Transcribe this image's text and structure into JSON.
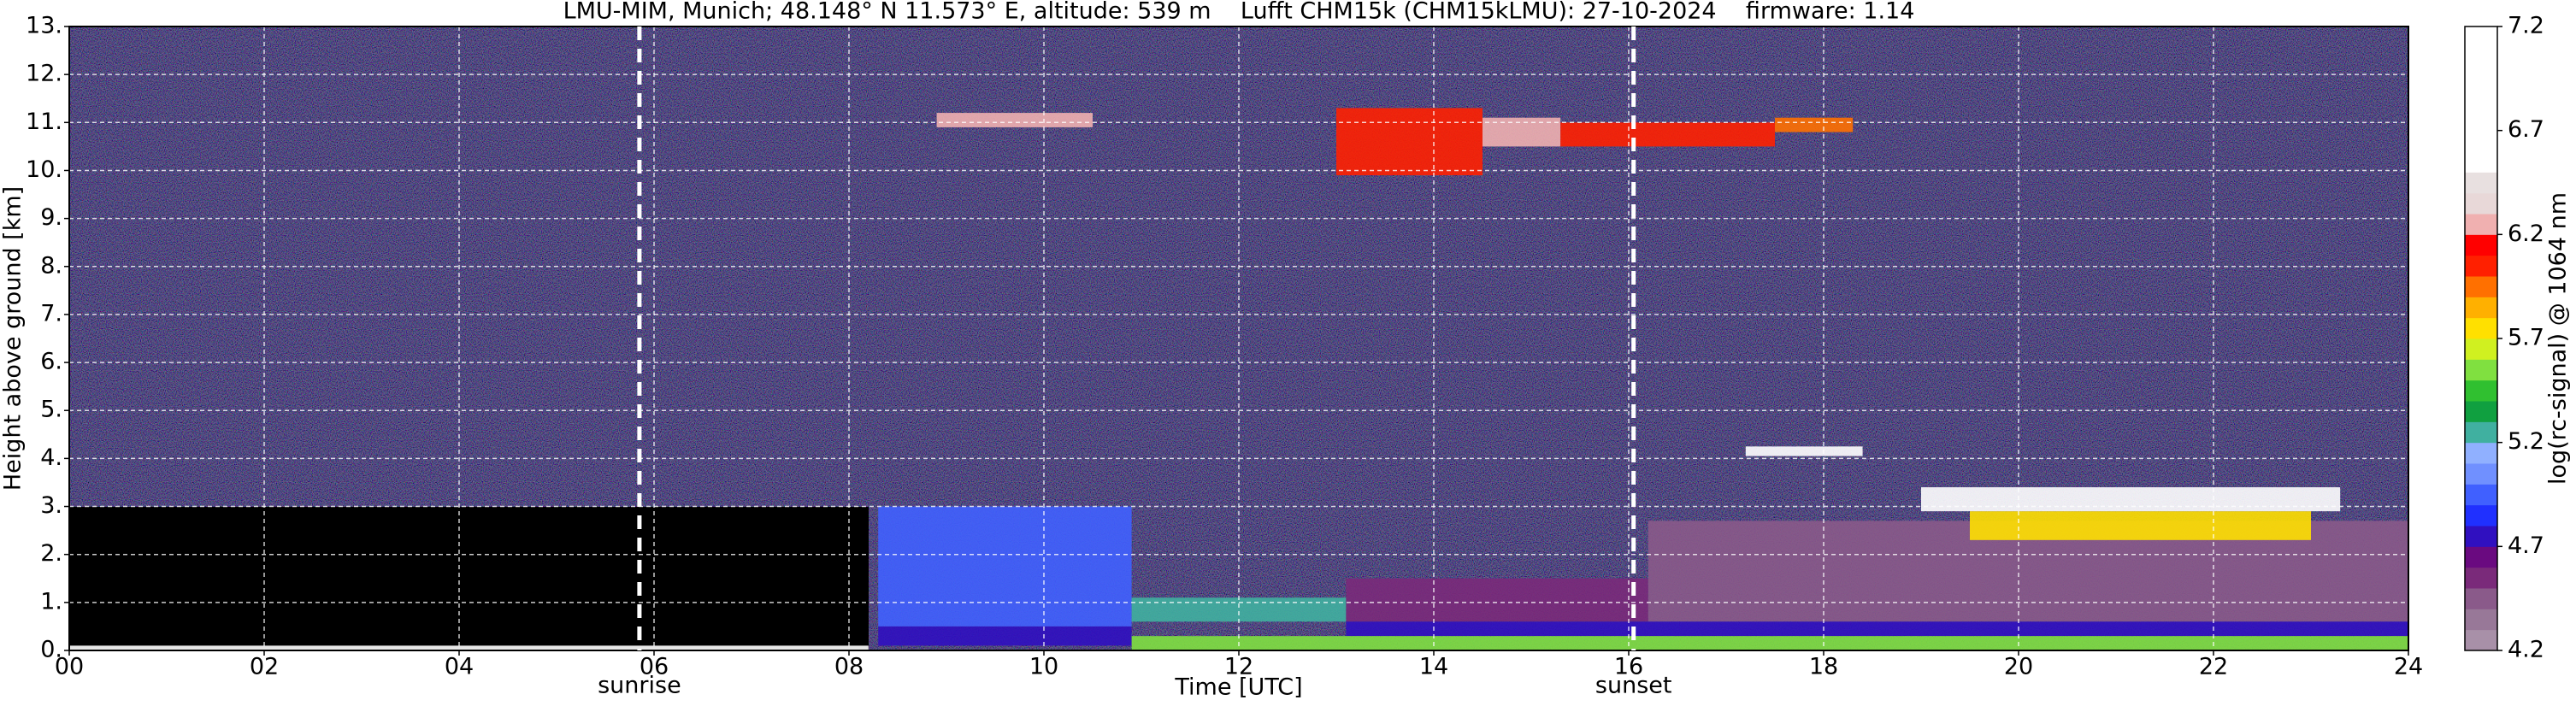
{
  "chart_data": {
    "type": "heatmap",
    "title": "LMU-MIM, Munich; 48.148° N 11.573° E, altitude: 539 m    Lufft CHM15k (CHM15kLMU): 27-10-2024    firmware: 1.14",
    "x_label": "Time [UTC]",
    "y_label": "Height above ground [km]",
    "colorbar_label": "log(rc-signal) @ 1064 nm",
    "xlim": [
      0,
      24
    ],
    "xticks": [
      {
        "value": 0,
        "label": "00"
      },
      {
        "value": 2,
        "label": "02"
      },
      {
        "value": 4,
        "label": "04"
      },
      {
        "value": 6,
        "label": "06"
      },
      {
        "value": 8,
        "label": "08"
      },
      10,
      12,
      14,
      16,
      18,
      20,
      22,
      24
    ],
    "ylim": [
      0,
      13
    ],
    "yticks": [
      {
        "value": 0,
        "label": "0."
      },
      {
        "value": 1,
        "label": "1."
      },
      {
        "value": 2,
        "label": "2."
      },
      {
        "value": 3,
        "label": "3."
      },
      {
        "value": 4,
        "label": "4."
      },
      {
        "value": 5,
        "label": "5."
      },
      {
        "value": 6,
        "label": "6."
      },
      {
        "value": 7,
        "label": "7."
      },
      {
        "value": 8,
        "label": "8."
      },
      {
        "value": 9,
        "label": "9."
      },
      {
        "value": 10,
        "label": "10."
      },
      {
        "value": 11,
        "label": "11."
      },
      {
        "value": 12,
        "label": "12."
      },
      {
        "value": 13,
        "label": "13."
      }
    ],
    "clim": [
      4.2,
      7.2
    ],
    "cticks": [
      4.2,
      4.7,
      5.2,
      5.7,
      6.2,
      6.7,
      7.2
    ],
    "colormap": [
      "#a890a8",
      "#987898",
      "#8a5a8a",
      "#7a2a7a",
      "#6a0a80",
      "#3010c0",
      "#2030ff",
      "#4060ff",
      "#7090ff",
      "#90b0ff",
      "#40b0a0",
      "#10a040",
      "#30c030",
      "#80e040",
      "#d0f020",
      "#ffe000",
      "#ffb000",
      "#ff7000",
      "#ff2000",
      "#ff0000",
      "#f0b0b0",
      "#e8d8d8",
      "#e8e0e0",
      "#ffffff",
      "#ffffff",
      "#ffffff",
      "#ffffff",
      "#ffffff",
      "#ffffff",
      "#ffffff"
    ],
    "grid": true,
    "annotations": [
      {
        "x": 5.85,
        "label": "sunrise"
      },
      {
        "x": 16.05,
        "label": "sunset"
      }
    ],
    "features": [
      {
        "x": [
          0,
          8.2
        ],
        "y": [
          0,
          0.1
        ],
        "value": 6.5
      },
      {
        "x": [
          8.3,
          10.9
        ],
        "y": [
          0.5,
          3.0
        ],
        "value": 5.0
      },
      {
        "x": [
          8.3,
          10.9
        ],
        "y": [
          0.1,
          0.5
        ],
        "value": 4.8
      },
      {
        "x": [
          10.9,
          13.1
        ],
        "y": [
          0.6,
          1.1
        ],
        "value": 5.3
      },
      {
        "x": [
          13.1,
          16.2
        ],
        "y": [
          0.6,
          1.5
        ],
        "value": 4.6
      },
      {
        "x": [
          16.2,
          24
        ],
        "y": [
          0.6,
          2.7
        ],
        "value": 4.5
      },
      {
        "x": [
          13.1,
          24
        ],
        "y": [
          0.3,
          0.6
        ],
        "value": 4.8
      },
      {
        "x": [
          10.9,
          24
        ],
        "y": [
          0,
          0.3
        ],
        "value": 5.6
      },
      {
        "x": [
          8.9,
          10.5
        ],
        "y": [
          10.9,
          11.2
        ],
        "value": 6.3
      },
      {
        "x": [
          13.0,
          14.5
        ],
        "y": [
          9.9,
          11.3
        ],
        "value": 6.0
      },
      {
        "x": [
          14.5,
          15.3
        ],
        "y": [
          10.5,
          11.1
        ],
        "value": 6.3
      },
      {
        "x": [
          15.3,
          17.5
        ],
        "y": [
          10.5,
          11.0
        ],
        "value": 6.0
      },
      {
        "x": [
          17.5,
          18.3
        ],
        "y": [
          10.8,
          11.1
        ],
        "value": 5.9
      },
      {
        "x": [
          17.2,
          18.4
        ],
        "y": [
          4.05,
          4.25
        ],
        "value": 6.8
      },
      {
        "x": [
          19.5,
          23.0
        ],
        "y": [
          2.3,
          2.9
        ],
        "value": 5.7
      },
      {
        "x": [
          19.0,
          23.3
        ],
        "y": [
          2.9,
          3.4
        ],
        "value": 6.8
      }
    ]
  }
}
